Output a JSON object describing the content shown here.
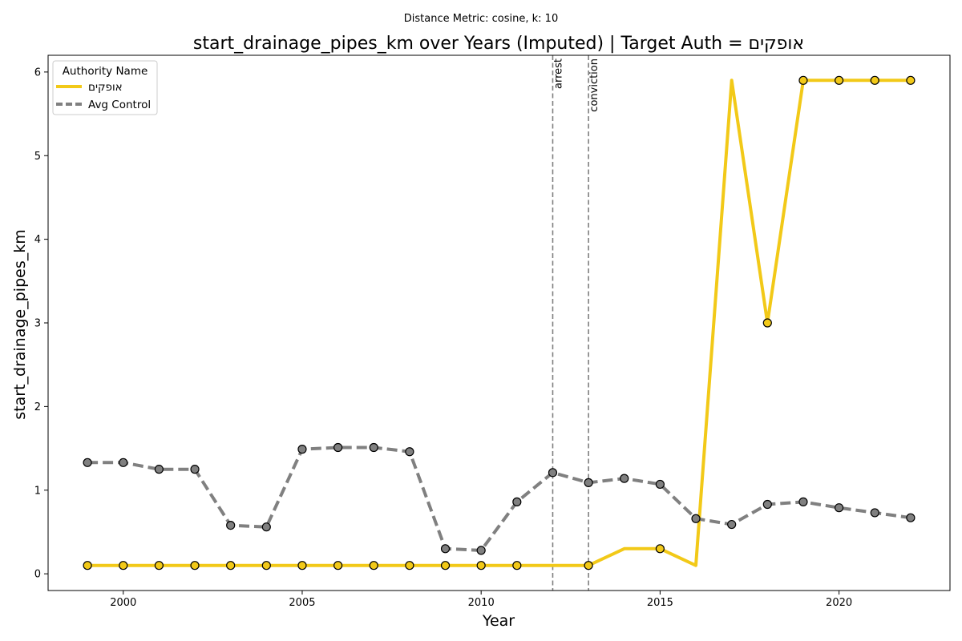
{
  "chart_data": {
    "type": "line",
    "suptitle": "Distance Metric: cosine, k: 10",
    "title": "start_drainage_pipes_km over Years (Imputed) | Target Auth = אופקים",
    "xlabel": "Year",
    "ylabel": "start_drainage_pipes_km",
    "xlim": [
      1997.9,
      2023.1
    ],
    "ylim": [
      -0.2,
      6.2
    ],
    "xticks": [
      2000,
      2005,
      2010,
      2015,
      2020
    ],
    "yticks": [
      0,
      1,
      2,
      3,
      4,
      5,
      6
    ],
    "grid": false,
    "legend": {
      "title": "Authority Name",
      "position": "top-left"
    },
    "x": [
      1999,
      2000,
      2001,
      2002,
      2003,
      2004,
      2005,
      2006,
      2007,
      2008,
      2009,
      2010,
      2011,
      2012,
      2013,
      2014,
      2015,
      2016,
      2017,
      2018,
      2019,
      2020,
      2021,
      2022
    ],
    "series": [
      {
        "name": "אופקים",
        "color": "#f2c918",
        "style": "solid",
        "values": [
          0.1,
          0.1,
          0.1,
          0.1,
          0.1,
          0.1,
          0.1,
          0.1,
          0.1,
          0.1,
          0.1,
          0.1,
          0.1,
          0.1,
          0.1,
          0.3,
          0.3,
          0.1,
          5.9,
          3.0,
          5.9,
          5.9,
          5.9,
          5.9
        ],
        "observed": [
          true,
          true,
          true,
          true,
          true,
          true,
          true,
          true,
          true,
          true,
          true,
          true,
          true,
          false,
          true,
          false,
          true,
          false,
          false,
          true,
          true,
          true,
          true,
          true
        ],
        "marker_color": "#f2c918"
      },
      {
        "name": "Avg Control",
        "color": "#808080",
        "style": "dashed",
        "values": [
          1.33,
          1.33,
          1.25,
          1.25,
          0.58,
          0.56,
          1.49,
          1.51,
          1.51,
          1.46,
          0.3,
          0.28,
          0.86,
          1.21,
          1.09,
          1.14,
          1.07,
          0.66,
          0.59,
          0.83,
          0.86,
          0.79,
          0.73,
          0.67
        ],
        "observed": [
          true,
          true,
          true,
          true,
          true,
          true,
          true,
          true,
          true,
          true,
          true,
          true,
          true,
          true,
          true,
          true,
          true,
          true,
          true,
          true,
          true,
          true,
          true,
          true
        ],
        "marker_color": "#808080"
      }
    ],
    "events": [
      {
        "x": 2012,
        "label": "arrest"
      },
      {
        "x": 2013,
        "label": "conviction"
      }
    ]
  }
}
